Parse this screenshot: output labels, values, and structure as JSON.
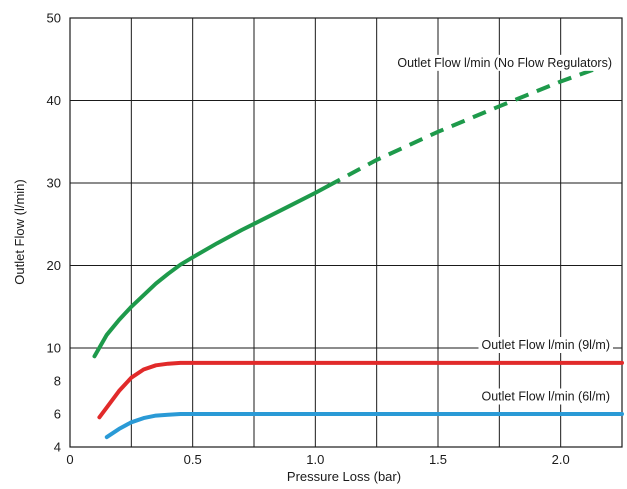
{
  "chart_data": {
    "type": "line",
    "xlabel": "Pressure Loss (bar)",
    "ylabel": "Outlet Flow (l/min)",
    "xlim": [
      0,
      2.25
    ],
    "x_ticks": [
      0,
      0.5,
      1.0,
      1.5,
      2.0
    ],
    "x_tick_labels": [
      "0",
      "0.5",
      "1.0",
      "1.5",
      "2.0"
    ],
    "x_gridlines": [
      0,
      0.25,
      0.5,
      0.75,
      1.0,
      1.25,
      1.5,
      1.75,
      2.0,
      2.25
    ],
    "y_ticks": [
      4,
      6,
      8,
      10,
      20,
      30,
      40,
      50
    ],
    "y_tick_labels": [
      "4",
      "6",
      "8",
      "10",
      "20",
      "30",
      "40",
      "50"
    ],
    "y_gridlines": [
      10,
      20,
      30,
      40,
      50
    ],
    "grid": true,
    "series": [
      {
        "name": "Outlet Flow l/min (No Flow Regulators)",
        "color": "#1e9a4b",
        "style": "solid",
        "x": [
          0.1,
          0.15,
          0.2,
          0.25,
          0.3,
          0.35,
          0.4,
          0.45,
          0.5,
          0.6,
          0.7,
          0.8,
          0.9,
          1.0,
          1.05
        ],
        "y": [
          9.5,
          11.6,
          13.4,
          15.0,
          16.4,
          17.8,
          19.0,
          20.1,
          21.0,
          22.7,
          24.3,
          25.8,
          27.3,
          28.8,
          29.6
        ]
      },
      {
        "name": "Outlet Flow l/min (No Flow Regulators) – extrapolated",
        "color": "#1e9a4b",
        "style": "dashed",
        "x": [
          1.05,
          1.25,
          1.5,
          1.75,
          2.0,
          2.25
        ],
        "y": [
          29.6,
          32.8,
          36.2,
          39.3,
          42.3,
          45.0
        ]
      },
      {
        "name": "Outlet Flow l/min (9l/m)",
        "color": "#e12a2a",
        "style": "solid",
        "x": [
          0.12,
          0.15,
          0.2,
          0.25,
          0.3,
          0.35,
          0.4,
          0.45,
          0.5,
          1.0,
          1.5,
          2.0,
          2.25
        ],
        "y": [
          5.8,
          6.4,
          7.4,
          8.2,
          8.7,
          8.95,
          9.05,
          9.1,
          9.1,
          9.1,
          9.1,
          9.1,
          9.1
        ]
      },
      {
        "name": "Outlet Flow l/min (6l/m)",
        "color": "#2a9ad6",
        "style": "solid",
        "x": [
          0.15,
          0.2,
          0.25,
          0.3,
          0.35,
          0.4,
          0.45,
          0.5,
          1.0,
          1.5,
          2.0,
          2.25
        ],
        "y": [
          4.6,
          5.1,
          5.5,
          5.75,
          5.9,
          5.95,
          6.0,
          6.0,
          6.0,
          6.0,
          6.0,
          6.0
        ]
      }
    ],
    "labels": [
      "Outlet Flow l/min (No Flow Regulators)",
      "Outlet Flow l/min (9l/m)",
      "Outlet Flow l/min (6l/m)"
    ]
  }
}
